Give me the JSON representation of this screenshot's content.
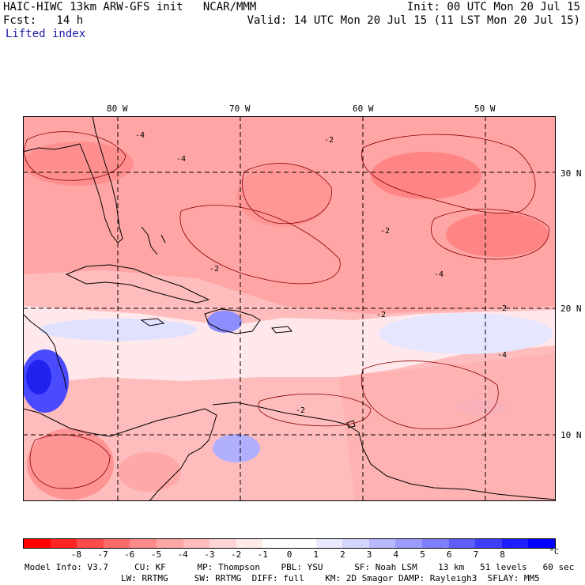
{
  "header": {
    "title": "HAIC-HIWC 13km ARW-GFS init   NCAR/MMM",
    "forecast": "Fcst:   14 h",
    "init": "Init: 00 UTC Mon 20 Jul 15",
    "valid": "Valid: 14 UTC Mon 20 Jul 15 (11 LST Mon 20 Jul 15)",
    "field": "Lifted index"
  },
  "map": {
    "lon_labels": [
      "80 W",
      "70 W",
      "60 W",
      "50 W"
    ],
    "lat_labels": [
      "30 N",
      "20 N",
      "10 N"
    ],
    "contour_labels": [
      "-4",
      "-2",
      "-2",
      "-4",
      "-4",
      "-2",
      "-2",
      "-2",
      "-4",
      "-2"
    ]
  },
  "colorbar": {
    "colors": [
      "#ff0000",
      "#ff2424",
      "#ff4a4a",
      "#ff6a6a",
      "#ff8a8a",
      "#ffa6a6",
      "#ffbcbc",
      "#ffd4d4",
      "#ffeaea",
      "#ffffff",
      "#ffffff",
      "#eaeaff",
      "#d4d4ff",
      "#b8b8ff",
      "#9c9cff",
      "#7e7eff",
      "#5e5eff",
      "#3e3eff",
      "#1e1eff",
      "#0000ff"
    ],
    "ticks": [
      "-8",
      "-7",
      "-6",
      "-5",
      "-4",
      "-3",
      "-2",
      "-1",
      "0",
      "1",
      "2",
      "3",
      "4",
      "5",
      "6",
      "7",
      "8"
    ],
    "unit": "°C"
  },
  "model_info": {
    "line1": "Model Info: V3.7     CU: KF      MP: Thompson    PBL: YSU      SF: Noah LSM    13 km   51 levels   60 sec",
    "line2": "LW: RRTMG     SW: RRTMG  DIFF: full    KM: 2D Smagor DAMP: Rayleigh3  SFLAY: MM5"
  },
  "palette": {
    "background": "#ffbcbc",
    "strong_neg": "#ff8a8a",
    "very_strong_neg": "#ff6a6a",
    "neutral": "#fff0f0",
    "pos_light": "#d8d8ff",
    "pos_strong": "#2a2aff",
    "coast": "#000000",
    "grid": "#000000"
  }
}
